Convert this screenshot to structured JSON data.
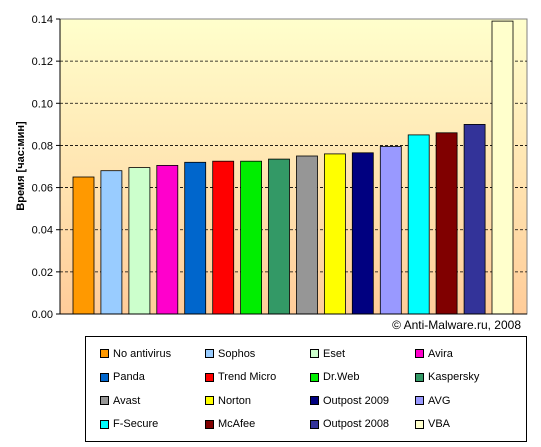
{
  "chart_data": {
    "type": "bar",
    "ylabel": "Время [час:мин]",
    "ylim": [
      0,
      0.14
    ],
    "yticks": [
      "0.00",
      "0.02",
      "0.04",
      "0.06",
      "0.08",
      "0.10",
      "0.12",
      "0.14"
    ],
    "copyright": "© Anti-Malware.ru, 2008",
    "grid": true,
    "legend_position": "bottom",
    "series": [
      {
        "name": "No antivirus",
        "value": 0.065,
        "color": "#ff9900"
      },
      {
        "name": "Sophos",
        "value": 0.068,
        "color": "#99ccff"
      },
      {
        "name": "Eset",
        "value": 0.0695,
        "color": "#ccffcc"
      },
      {
        "name": "Avira",
        "value": 0.0705,
        "color": "#ff00cc"
      },
      {
        "name": "Panda",
        "value": 0.072,
        "color": "#0066cc"
      },
      {
        "name": "Trend Micro",
        "value": 0.0725,
        "color": "#ff0000"
      },
      {
        "name": "Dr.Web",
        "value": 0.0725,
        "color": "#00ee00"
      },
      {
        "name": "Kaspersky",
        "value": 0.0735,
        "color": "#339966"
      },
      {
        "name": "Avast",
        "value": 0.075,
        "color": "#969696"
      },
      {
        "name": "Norton",
        "value": 0.076,
        "color": "#ffff00"
      },
      {
        "name": "Outpost 2009",
        "value": 0.0765,
        "color": "#000080"
      },
      {
        "name": "AVG",
        "value": 0.0795,
        "color": "#9999ff"
      },
      {
        "name": "F-Secure",
        "value": 0.085,
        "color": "#00ffff"
      },
      {
        "name": "McAfee",
        "value": 0.086,
        "color": "#800000"
      },
      {
        "name": "Outpost 2008",
        "value": 0.09,
        "color": "#333399"
      },
      {
        "name": "VBA",
        "value": 0.139,
        "color": "#ffffcc"
      }
    ]
  }
}
